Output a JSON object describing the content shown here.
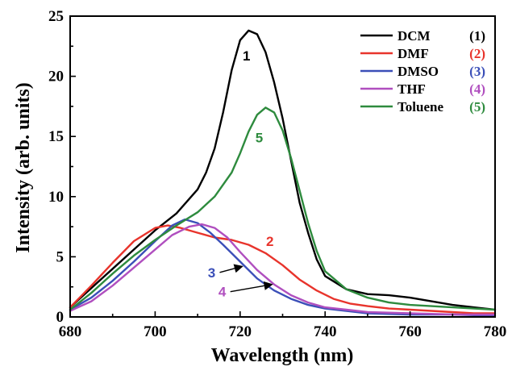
{
  "chart_data": {
    "type": "line",
    "title": "",
    "xlabel": "Wavelength (nm)",
    "ylabel": "Intensity (arb. units)",
    "xlim": [
      680,
      780
    ],
    "ylim": [
      0,
      25
    ],
    "x_ticks": [
      "680",
      "700",
      "720",
      "740",
      "760",
      "780"
    ],
    "y_ticks": [
      "0",
      "5",
      "10",
      "15",
      "20",
      "25"
    ],
    "grid": false,
    "legend_position": "top-right",
    "series": [
      {
        "name": "DCM",
        "number": "(1)",
        "curve_label": "1",
        "color": "#000000",
        "x": [
          680,
          685,
          690,
          695,
          700,
          705,
          710,
          712,
          714,
          716,
          718,
          720,
          722,
          724,
          726,
          728,
          730,
          732,
          734,
          736,
          738,
          740,
          745,
          750,
          755,
          760,
          765,
          770,
          775,
          780
        ],
        "y": [
          0.8,
          2.4,
          4.0,
          5.6,
          7.2,
          8.6,
          10.6,
          12.0,
          14.0,
          17.0,
          20.5,
          23.0,
          23.8,
          23.5,
          22.0,
          19.5,
          16.5,
          13.0,
          9.5,
          7.0,
          4.8,
          3.4,
          2.3,
          1.9,
          1.8,
          1.6,
          1.3,
          1.0,
          0.8,
          0.6
        ]
      },
      {
        "name": "DMF",
        "number": "(2)",
        "curve_label": "2",
        "color": "#e8342c",
        "x": [
          680,
          685,
          690,
          695,
          700,
          703,
          706,
          710,
          714,
          718,
          722,
          726,
          730,
          734,
          738,
          742,
          746,
          750,
          755,
          760,
          765,
          770,
          775,
          780
        ],
        "y": [
          0.8,
          2.6,
          4.5,
          6.3,
          7.4,
          7.6,
          7.4,
          7.0,
          6.6,
          6.4,
          6.0,
          5.3,
          4.3,
          3.1,
          2.2,
          1.5,
          1.1,
          0.9,
          0.7,
          0.6,
          0.5,
          0.4,
          0.3,
          0.3
        ]
      },
      {
        "name": "DMSO",
        "number": "(3)",
        "curve_label": "3",
        "color": "#3b4fb8",
        "x": [
          680,
          685,
          690,
          695,
          700,
          704,
          707,
          710,
          713,
          716,
          720,
          724,
          728,
          732,
          736,
          740,
          745,
          750,
          760,
          770,
          780
        ],
        "y": [
          0.6,
          1.6,
          3.0,
          4.6,
          6.3,
          7.6,
          8.1,
          7.8,
          7.0,
          6.0,
          4.6,
          3.2,
          2.2,
          1.5,
          1.0,
          0.7,
          0.5,
          0.3,
          0.2,
          0.2,
          0.1
        ]
      },
      {
        "name": "THF",
        "number": "(4)",
        "curve_label": "4",
        "color": "#b04fbf",
        "x": [
          680,
          685,
          690,
          695,
          700,
          704,
          708,
          711,
          714,
          717,
          720,
          724,
          728,
          732,
          736,
          740,
          745,
          750,
          760,
          770,
          780
        ],
        "y": [
          0.5,
          1.3,
          2.6,
          4.1,
          5.6,
          6.8,
          7.5,
          7.7,
          7.4,
          6.6,
          5.4,
          3.9,
          2.7,
          1.8,
          1.2,
          0.8,
          0.6,
          0.4,
          0.3,
          0.2,
          0.2
        ]
      },
      {
        "name": "Toluene",
        "number": "(5)",
        "curve_label": "5",
        "color": "#2e8b3e",
        "x": [
          680,
          685,
          690,
          695,
          700,
          705,
          710,
          714,
          718,
          720,
          722,
          724,
          726,
          728,
          730,
          732,
          734,
          736,
          738,
          740,
          745,
          750,
          755,
          760,
          765,
          770,
          775,
          780
        ],
        "y": [
          0.6,
          2.0,
          3.6,
          5.1,
          6.4,
          7.6,
          8.7,
          10.0,
          12.0,
          13.6,
          15.4,
          16.8,
          17.4,
          17.0,
          15.5,
          13.2,
          10.5,
          7.8,
          5.5,
          3.8,
          2.3,
          1.6,
          1.2,
          1.0,
          0.9,
          0.8,
          0.7,
          0.6
        ]
      }
    ],
    "annotations": [
      {
        "text": "1",
        "x": 721.5,
        "y": 21.3,
        "color": "#000000"
      },
      {
        "text": "5",
        "x": 724.5,
        "y": 14.5,
        "color": "#2e8b3e"
      },
      {
        "text": "2",
        "x": 727.0,
        "y": 5.9,
        "color": "#e8342c"
      },
      {
        "text": "3",
        "x": 713.3,
        "y": 3.3,
        "color": "#3b4fb8",
        "arrow_to": [
          720.5,
          4.2
        ]
      },
      {
        "text": "4",
        "x": 715.8,
        "y": 1.7,
        "color": "#b04fbf",
        "arrow_to": [
          727.5,
          2.7
        ]
      }
    ]
  }
}
